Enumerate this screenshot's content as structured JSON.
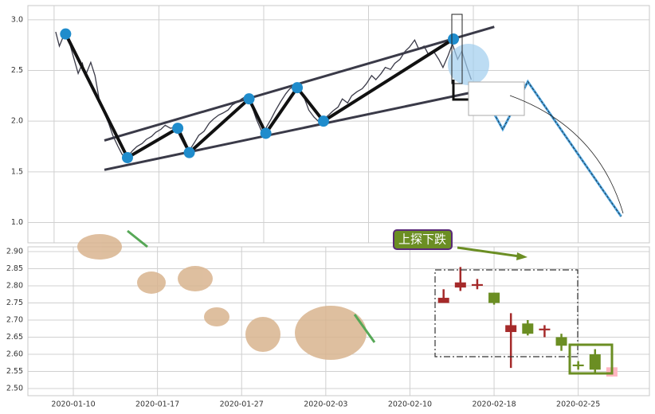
{
  "chart_data": [
    {
      "type": "line",
      "xlim": [
        -2.5,
        56.8
      ],
      "xticks": [
        0,
        10,
        20,
        30,
        40,
        50
      ],
      "ylim": [
        0.8,
        3.14
      ],
      "yticks": [
        {
          "value": 1,
          "label": "1.0"
        },
        1.5,
        {
          "value": 2,
          "label": "2.0"
        },
        2.5,
        {
          "value": 3,
          "label": "3.0"
        }
      ],
      "grid": true,
      "series": [
        {
          "color": "#3a3a48",
          "x": [
            0.15,
            0.5,
            0.9,
            1.4,
            1.8,
            2.3,
            2.7,
            3.0,
            3.5,
            3.9,
            4.3,
            4.7,
            5.2,
            5.6,
            6.1,
            6.5,
            7.0,
            7.5,
            7.9,
            8.4,
            8.8,
            9.3,
            9.7,
            10.2,
            10.6,
            11.1,
            11.6,
            12.0,
            12.5,
            12.9,
            13.4,
            13.8,
            14.3,
            14.8,
            15.2,
            15.7,
            16.1,
            16.6,
            17.0,
            17.5,
            17.9,
            18.4,
            18.9,
            19.3,
            19.8,
            20.2,
            20.7,
            21.1,
            21.6,
            22.1,
            22.5,
            23.0,
            23.4,
            23.9,
            24.3,
            24.8,
            25.2,
            25.7,
            26.2,
            26.6,
            27.1,
            27.5,
            28.0,
            28.4,
            28.9,
            29.4,
            29.8,
            30.3,
            30.7,
            31.2,
            31.6,
            32.1,
            32.5,
            33.0,
            33.5,
            33.9,
            34.4,
            34.8,
            35.3,
            35.7,
            36.2,
            36.7,
            37.1,
            37.6,
            38.0,
            38.5,
            38.9,
            39.4,
            39.8
          ],
          "values": [
            2.88,
            2.74,
            2.84,
            2.8,
            2.65,
            2.47,
            2.57,
            2.45,
            2.58,
            2.45,
            2.22,
            2.1,
            1.98,
            1.86,
            1.75,
            1.67,
            1.65,
            1.71,
            1.75,
            1.78,
            1.82,
            1.85,
            1.89,
            1.92,
            1.96,
            1.93,
            1.94,
            1.85,
            1.75,
            1.71,
            1.79,
            1.86,
            1.9,
            1.98,
            2.02,
            2.06,
            2.08,
            2.11,
            2.16,
            2.19,
            2.22,
            2.25,
            2.14,
            2.02,
            1.9,
            1.93,
            2.02,
            2.1,
            2.19,
            2.27,
            2.32,
            2.35,
            2.3,
            2.22,
            2.11,
            2.04,
            2.0,
            2.02,
            2.06,
            2.1,
            2.14,
            2.22,
            2.18,
            2.25,
            2.29,
            2.32,
            2.37,
            2.45,
            2.41,
            2.47,
            2.53,
            2.51,
            2.57,
            2.61,
            2.69,
            2.73,
            2.8,
            2.71,
            2.74,
            2.66,
            2.69,
            2.61,
            2.53,
            2.65,
            2.76,
            2.61,
            2.69,
            2.53,
            2.41
          ]
        }
      ],
      "zigzag": {
        "color": "#1f8ccc",
        "line_color": "#111111",
        "x": [
          1.1,
          7.0,
          11.8,
          12.9,
          18.6,
          20.2,
          23.2,
          25.7,
          38.1
        ],
        "values": [
          2.86,
          1.64,
          1.93,
          1.69,
          2.22,
          1.88,
          2.33,
          2.0,
          2.81
        ]
      },
      "trend_lines": [
        {
          "color": "#3a3a48",
          "x": [
            4.8,
            42.0
          ],
          "values": [
            1.81,
            2.93
          ]
        },
        {
          "color": "#3a3a48",
          "x": [
            4.8,
            39.7
          ],
          "values": [
            1.52,
            2.28
          ]
        }
      ],
      "forecast": {
        "color": "#4aa3df",
        "x": [
          40.5,
          42.8,
          45.2,
          54.1
        ],
        "values": [
          2.35,
          1.92,
          2.39,
          1.06
        ]
      }
    },
    {
      "type": "candlestick",
      "xlim": [
        -2.7,
        34.23
      ],
      "xticks": [
        {
          "value": 0,
          "label": "2020-01-10"
        },
        {
          "value": 5,
          "label": "2020-01-17"
        },
        {
          "value": 10,
          "label": "2020-01-27"
        },
        {
          "value": 15,
          "label": "2020-02-03"
        },
        {
          "value": 20,
          "label": "2020-02-10"
        },
        {
          "value": 25,
          "label": "2020-02-18"
        },
        {
          "value": 30,
          "label": "2020-02-25"
        }
      ],
      "ylim": [
        2.479,
        2.914
      ],
      "yticks": [
        {
          "value": 2.5,
          "label": "2.50"
        },
        2.55,
        {
          "value": 2.6,
          "label": "2.60"
        },
        2.65,
        {
          "value": 2.7,
          "label": "2.70"
        },
        2.75,
        {
          "value": 2.8,
          "label": "2.80"
        },
        2.85,
        {
          "value": 2.9,
          "label": "2.90"
        }
      ],
      "grid": true,
      "x": [
        22,
        23,
        24,
        25,
        26,
        27,
        28,
        29,
        30,
        31,
        32
      ],
      "open": [
        2.75,
        2.795,
        2.8,
        2.78,
        2.665,
        2.69,
        2.67,
        2.65,
        2.57,
        2.6,
        2.562
      ],
      "high": [
        2.79,
        2.855,
        2.82,
        2.78,
        2.72,
        2.7,
        2.685,
        2.66,
        2.58,
        2.615,
        2.608
      ],
      "low": [
        2.75,
        2.785,
        2.79,
        2.745,
        2.56,
        2.655,
        2.65,
        2.61,
        2.555,
        2.545,
        2.535
      ],
      "close": [
        2.765,
        2.81,
        2.805,
        2.75,
        2.685,
        2.66,
        2.675,
        2.625,
        2.565,
        2.555,
        2.535
      ],
      "colors": [
        "#a52a2a",
        "#a52a2a",
        "#a52a2a",
        "#6b8e23",
        "#a52a2a",
        "#6b8e23",
        "#a52a2a",
        "#6b8e23",
        "#6b8e23",
        "#6b8e23",
        "#ffb6c1"
      ],
      "annotation": {
        "text": "上探下跌",
        "color": "#6b8e23",
        "border": "#5a2a78"
      }
    }
  ]
}
